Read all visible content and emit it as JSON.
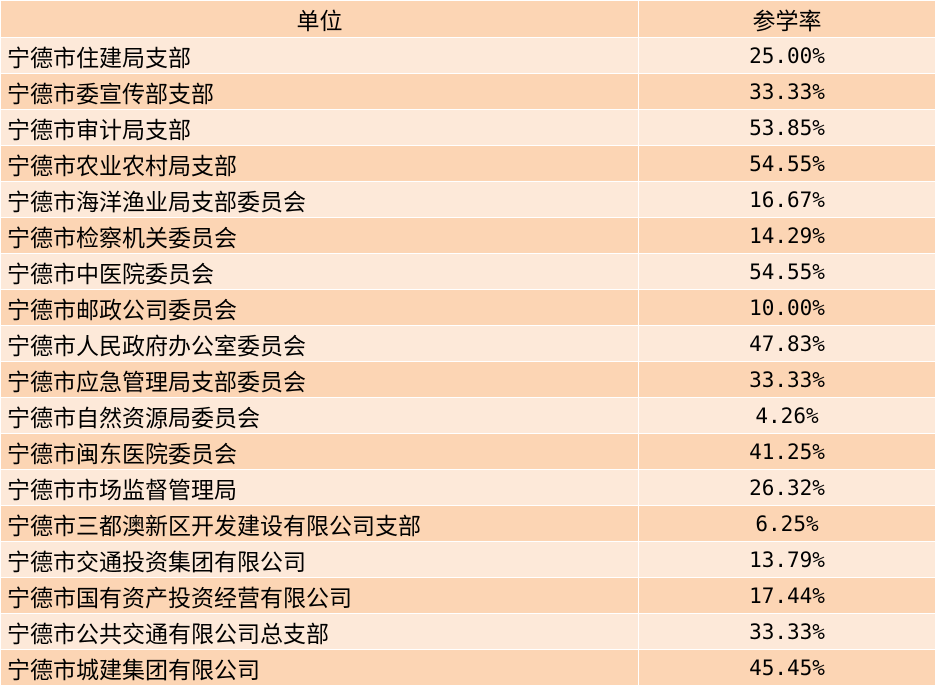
{
  "table": {
    "headers": [
      "单位",
      "参学率"
    ],
    "rows": [
      {
        "unit": "宁德市住建局支部",
        "rate": "25.00%"
      },
      {
        "unit": "宁德市委宣传部支部",
        "rate": "33.33%"
      },
      {
        "unit": "宁德市审计局支部",
        "rate": "53.85%"
      },
      {
        "unit": "宁德市农业农村局支部",
        "rate": "54.55%"
      },
      {
        "unit": "宁德市海洋渔业局支部委员会",
        "rate": "16.67%"
      },
      {
        "unit": "宁德市检察机关委员会",
        "rate": "14.29%"
      },
      {
        "unit": "宁德市中医院委员会",
        "rate": "54.55%"
      },
      {
        "unit": "宁德市邮政公司委员会",
        "rate": "10.00%"
      },
      {
        "unit": "宁德市人民政府办公室委员会",
        "rate": "47.83%"
      },
      {
        "unit": "宁德市应急管理局支部委员会",
        "rate": "33.33%"
      },
      {
        "unit": "宁德市自然资源局委员会",
        "rate": "4.26%"
      },
      {
        "unit": "宁德市闽东医院委员会",
        "rate": "41.25%"
      },
      {
        "unit": "宁德市市场监督管理局",
        "rate": "26.32%"
      },
      {
        "unit": "宁德市三都澳新区开发建设有限公司支部",
        "rate": "6.25%"
      },
      {
        "unit": "宁德市交通投资集团有限公司",
        "rate": "13.79%"
      },
      {
        "unit": "宁德市国有资产投资经营有限公司",
        "rate": "17.44%"
      },
      {
        "unit": "宁德市公共交通有限公司总支部",
        "rate": "33.33%"
      },
      {
        "unit": "宁德市城建集团有限公司",
        "rate": "45.45%"
      }
    ]
  },
  "colors": {
    "header": "#FCD5B4",
    "row_light": "#FDE9D9",
    "row_dark": "#FCD5B4"
  }
}
